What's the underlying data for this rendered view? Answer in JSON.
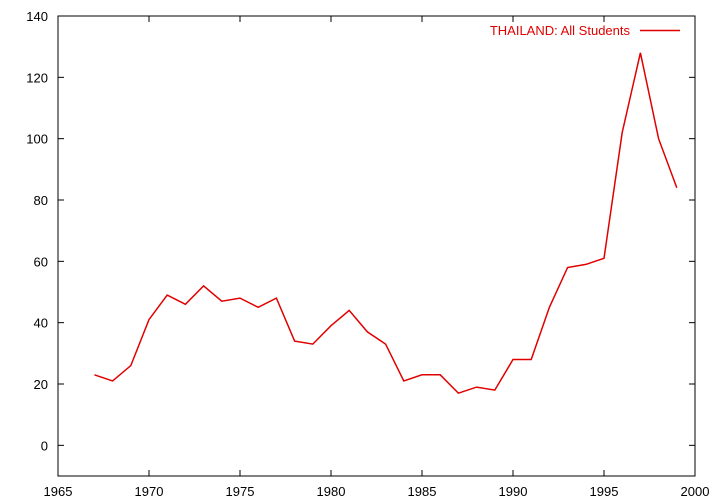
{
  "chart_data": {
    "type": "line",
    "title": "",
    "xlabel": "",
    "ylabel": "",
    "xlim": [
      1965,
      2000
    ],
    "ylim": [
      -10,
      140
    ],
    "xticks": [
      1965,
      1970,
      1975,
      1980,
      1985,
      1990,
      1995,
      2000
    ],
    "yticks": [
      0,
      20,
      40,
      60,
      80,
      100,
      120,
      140
    ],
    "grid": false,
    "legend_position": "top-right",
    "series": [
      {
        "name": "THAILAND: All Students",
        "color": "#e00000",
        "x": [
          1967,
          1968,
          1969,
          1970,
          1971,
          1972,
          1973,
          1974,
          1975,
          1976,
          1977,
          1978,
          1979,
          1980,
          1981,
          1982,
          1983,
          1984,
          1985,
          1986,
          1987,
          1988,
          1989,
          1990,
          1991,
          1992,
          1993,
          1994,
          1995,
          1996,
          1997,
          1998,
          1999
        ],
        "y": [
          23,
          21,
          26,
          41,
          49,
          46,
          52,
          47,
          48,
          45,
          48,
          34,
          33,
          39,
          44,
          37,
          33,
          21,
          23,
          23,
          17,
          19,
          18,
          28,
          28,
          45,
          58,
          59,
          61,
          102,
          128,
          100,
          84
        ]
      }
    ]
  }
}
